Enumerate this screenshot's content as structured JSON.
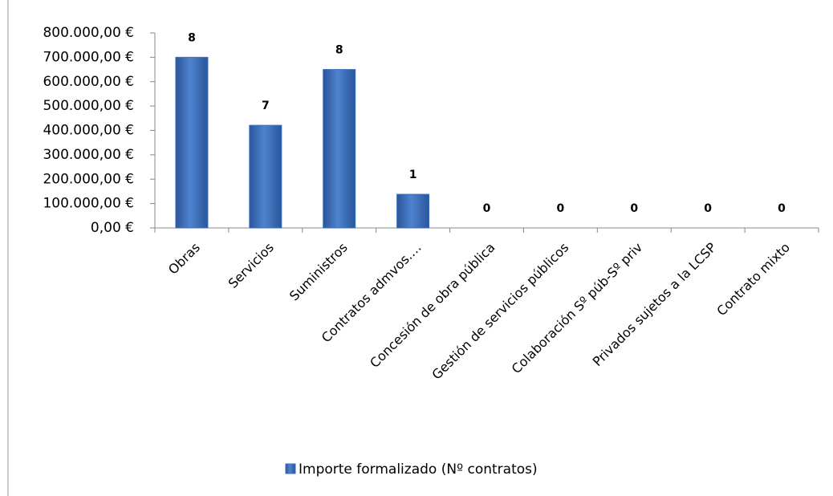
{
  "chart_data": {
    "type": "bar",
    "categories": [
      "Obras",
      "Servicios",
      "Suministros",
      "Contratos admvos.…",
      "Concesión de obra pública",
      "Gestión de servicios públicos",
      "Colaboración Sº púb-Sº priv",
      "Privados sujetos a la LCSP",
      "Contrato mixto"
    ],
    "series": [
      {
        "name": "Importe formalizado (Nº contratos)",
        "color": "#3a6fc0",
        "values": [
          700000,
          421000,
          650000,
          138000,
          0,
          0,
          0,
          0,
          0
        ],
        "contract_counts": [
          8,
          7,
          8,
          1,
          0,
          0,
          0,
          0,
          0
        ]
      }
    ],
    "ylim": [
      0,
      800000
    ],
    "yticks": [
      {
        "value": 0,
        "label": "0,00 €"
      },
      {
        "value": 100000,
        "label": "100.000,00 €"
      },
      {
        "value": 200000,
        "label": "200.000,00 €"
      },
      {
        "value": 300000,
        "label": "300.000,00 €"
      },
      {
        "value": 400000,
        "label": "400.000,00 €"
      },
      {
        "value": 500000,
        "label": "500.000,00 €"
      },
      {
        "value": 600000,
        "label": "600.000,00 €"
      },
      {
        "value": 700000,
        "label": "700.000,00 €"
      },
      {
        "value": 800000,
        "label": "800.000,00 €"
      }
    ],
    "legend": "bottom"
  }
}
